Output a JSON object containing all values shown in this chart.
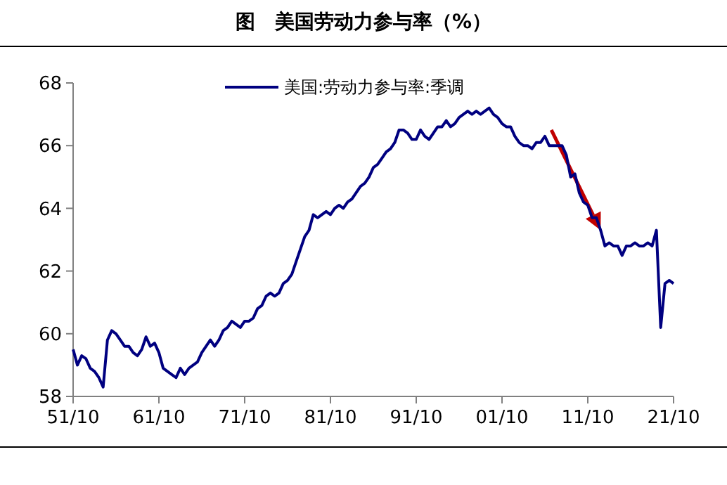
{
  "chart_data": {
    "type": "line",
    "title": "图　美国劳动力参与率（%）",
    "categories": [
      "51/10",
      null,
      null,
      null,
      null,
      null,
      null,
      null,
      null,
      null,
      null,
      null,
      null,
      null,
      null,
      null,
      null,
      null,
      null,
      null,
      "61/10",
      null,
      null,
      null,
      null,
      null,
      null,
      null,
      null,
      null,
      null,
      null,
      null,
      null,
      null,
      null,
      null,
      null,
      null,
      null,
      "71/10",
      null,
      null,
      null,
      null,
      null,
      null,
      null,
      null,
      null,
      null,
      null,
      null,
      null,
      null,
      null,
      null,
      null,
      null,
      null,
      "81/10",
      null,
      null,
      null,
      null,
      null,
      null,
      null,
      null,
      null,
      null,
      null,
      null,
      null,
      null,
      null,
      null,
      null,
      null,
      null,
      "91/10",
      null,
      null,
      null,
      null,
      null,
      null,
      null,
      null,
      null,
      null,
      null,
      null,
      null,
      null,
      null,
      null,
      null,
      null,
      null,
      "01/10",
      null,
      null,
      null,
      null,
      null,
      null,
      null,
      null,
      null,
      null,
      null,
      null,
      null,
      null,
      null,
      null,
      null,
      null,
      null,
      "11/10",
      null,
      null,
      null,
      null,
      null,
      null,
      null,
      null,
      null,
      null,
      null,
      null,
      null,
      null,
      null,
      null,
      null,
      null,
      null,
      "21/10"
    ],
    "series": [
      {
        "name": "美国:劳动力参与率:季调",
        "color": "#000080",
        "values": [
          59.5,
          59.0,
          59.3,
          59.2,
          58.9,
          58.8,
          58.6,
          58.3,
          59.8,
          60.1,
          60.0,
          59.8,
          59.6,
          59.6,
          59.4,
          59.3,
          59.5,
          59.9,
          59.6,
          59.7,
          59.4,
          58.9,
          58.8,
          58.7,
          58.6,
          58.9,
          58.7,
          58.9,
          59.0,
          59.1,
          59.4,
          59.6,
          59.8,
          59.6,
          59.8,
          60.1,
          60.2,
          60.4,
          60.3,
          60.2,
          60.4,
          60.4,
          60.5,
          60.8,
          60.9,
          61.2,
          61.3,
          61.2,
          61.3,
          61.6,
          61.7,
          61.9,
          62.3,
          62.7,
          63.1,
          63.3,
          63.8,
          63.7,
          63.8,
          63.9,
          63.8,
          64.0,
          64.1,
          64.0,
          64.2,
          64.3,
          64.5,
          64.7,
          64.8,
          65.0,
          65.3,
          65.4,
          65.6,
          65.8,
          65.9,
          66.1,
          66.5,
          66.5,
          66.4,
          66.2,
          66.2,
          66.5,
          66.3,
          66.2,
          66.4,
          66.6,
          66.6,
          66.8,
          66.6,
          66.7,
          66.9,
          67.0,
          67.1,
          67.0,
          67.1,
          67.0,
          67.1,
          67.2,
          67.0,
          66.9,
          66.7,
          66.6,
          66.6,
          66.3,
          66.1,
          66.0,
          66.0,
          65.9,
          66.1,
          66.1,
          66.3,
          66.0,
          66.0,
          66.0,
          66.0,
          65.7,
          65.0,
          65.1,
          64.5,
          64.2,
          64.1,
          63.7,
          63.7,
          63.3,
          62.8,
          62.9,
          62.8,
          62.8,
          62.5,
          62.8,
          62.8,
          62.9,
          62.8,
          62.8,
          62.9,
          62.8,
          63.3,
          60.2,
          61.6,
          61.7,
          61.6
        ]
      }
    ],
    "ylim": [
      58,
      68
    ],
    "yticks": [
      58,
      60,
      62,
      64,
      66,
      68
    ],
    "legend": "top",
    "grid": false,
    "line_style": "solid",
    "marker": "none"
  }
}
